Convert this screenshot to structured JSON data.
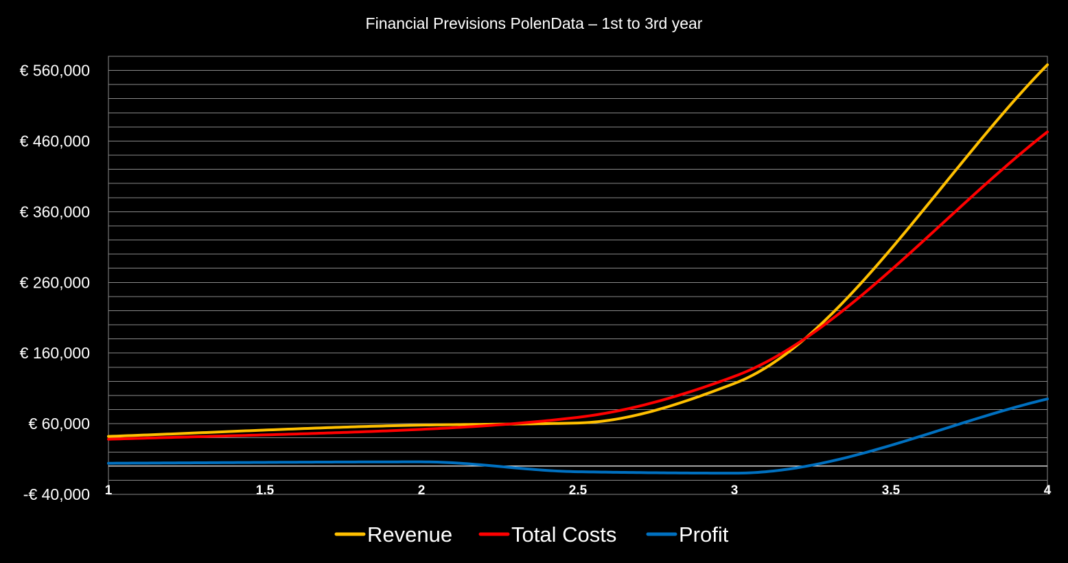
{
  "chart_data": {
    "type": "line",
    "title": "Financial Previsions PolenData – 1st to 3rd year",
    "xlabel": "",
    "ylabel": "",
    "x": [
      1,
      1.5,
      2,
      2.5,
      3,
      3.5,
      4
    ],
    "x_ticks": [
      "1",
      "1.5",
      "2",
      "2.5",
      "3",
      "3.5",
      "4"
    ],
    "xlim": [
      1,
      4
    ],
    "ylim": [
      -40000,
      580000
    ],
    "y_ticks": [
      -40000,
      60000,
      160000,
      260000,
      360000,
      460000,
      560000
    ],
    "y_tick_labels": [
      "-€ 40,000",
      "€ 60,000",
      "€ 160,000",
      "€ 260,000",
      "€ 360,000",
      "€ 460,000",
      "€ 560,000"
    ],
    "y_minor_step": 20000,
    "grid": true,
    "smooth": true,
    "legend_position": "bottom",
    "series": [
      {
        "name": "Revenue",
        "color": "#ffc000",
        "points": [
          [
            1,
            42000
          ],
          [
            2,
            58000
          ],
          [
            2.5,
            61000
          ],
          [
            3,
            117000
          ],
          [
            4,
            568000
          ]
        ]
      },
      {
        "name": "Total Costs",
        "color": "#ff0000",
        "points": [
          [
            1,
            38000
          ],
          [
            2,
            52000
          ],
          [
            2.5,
            69000
          ],
          [
            3,
            127000
          ],
          [
            4,
            473000
          ]
        ]
      },
      {
        "name": "Profit",
        "color": "#0070c0",
        "points": [
          [
            1,
            4000
          ],
          [
            2,
            6000
          ],
          [
            2.5,
            -8000
          ],
          [
            3,
            -10000
          ],
          [
            4,
            95000
          ]
        ]
      }
    ]
  }
}
